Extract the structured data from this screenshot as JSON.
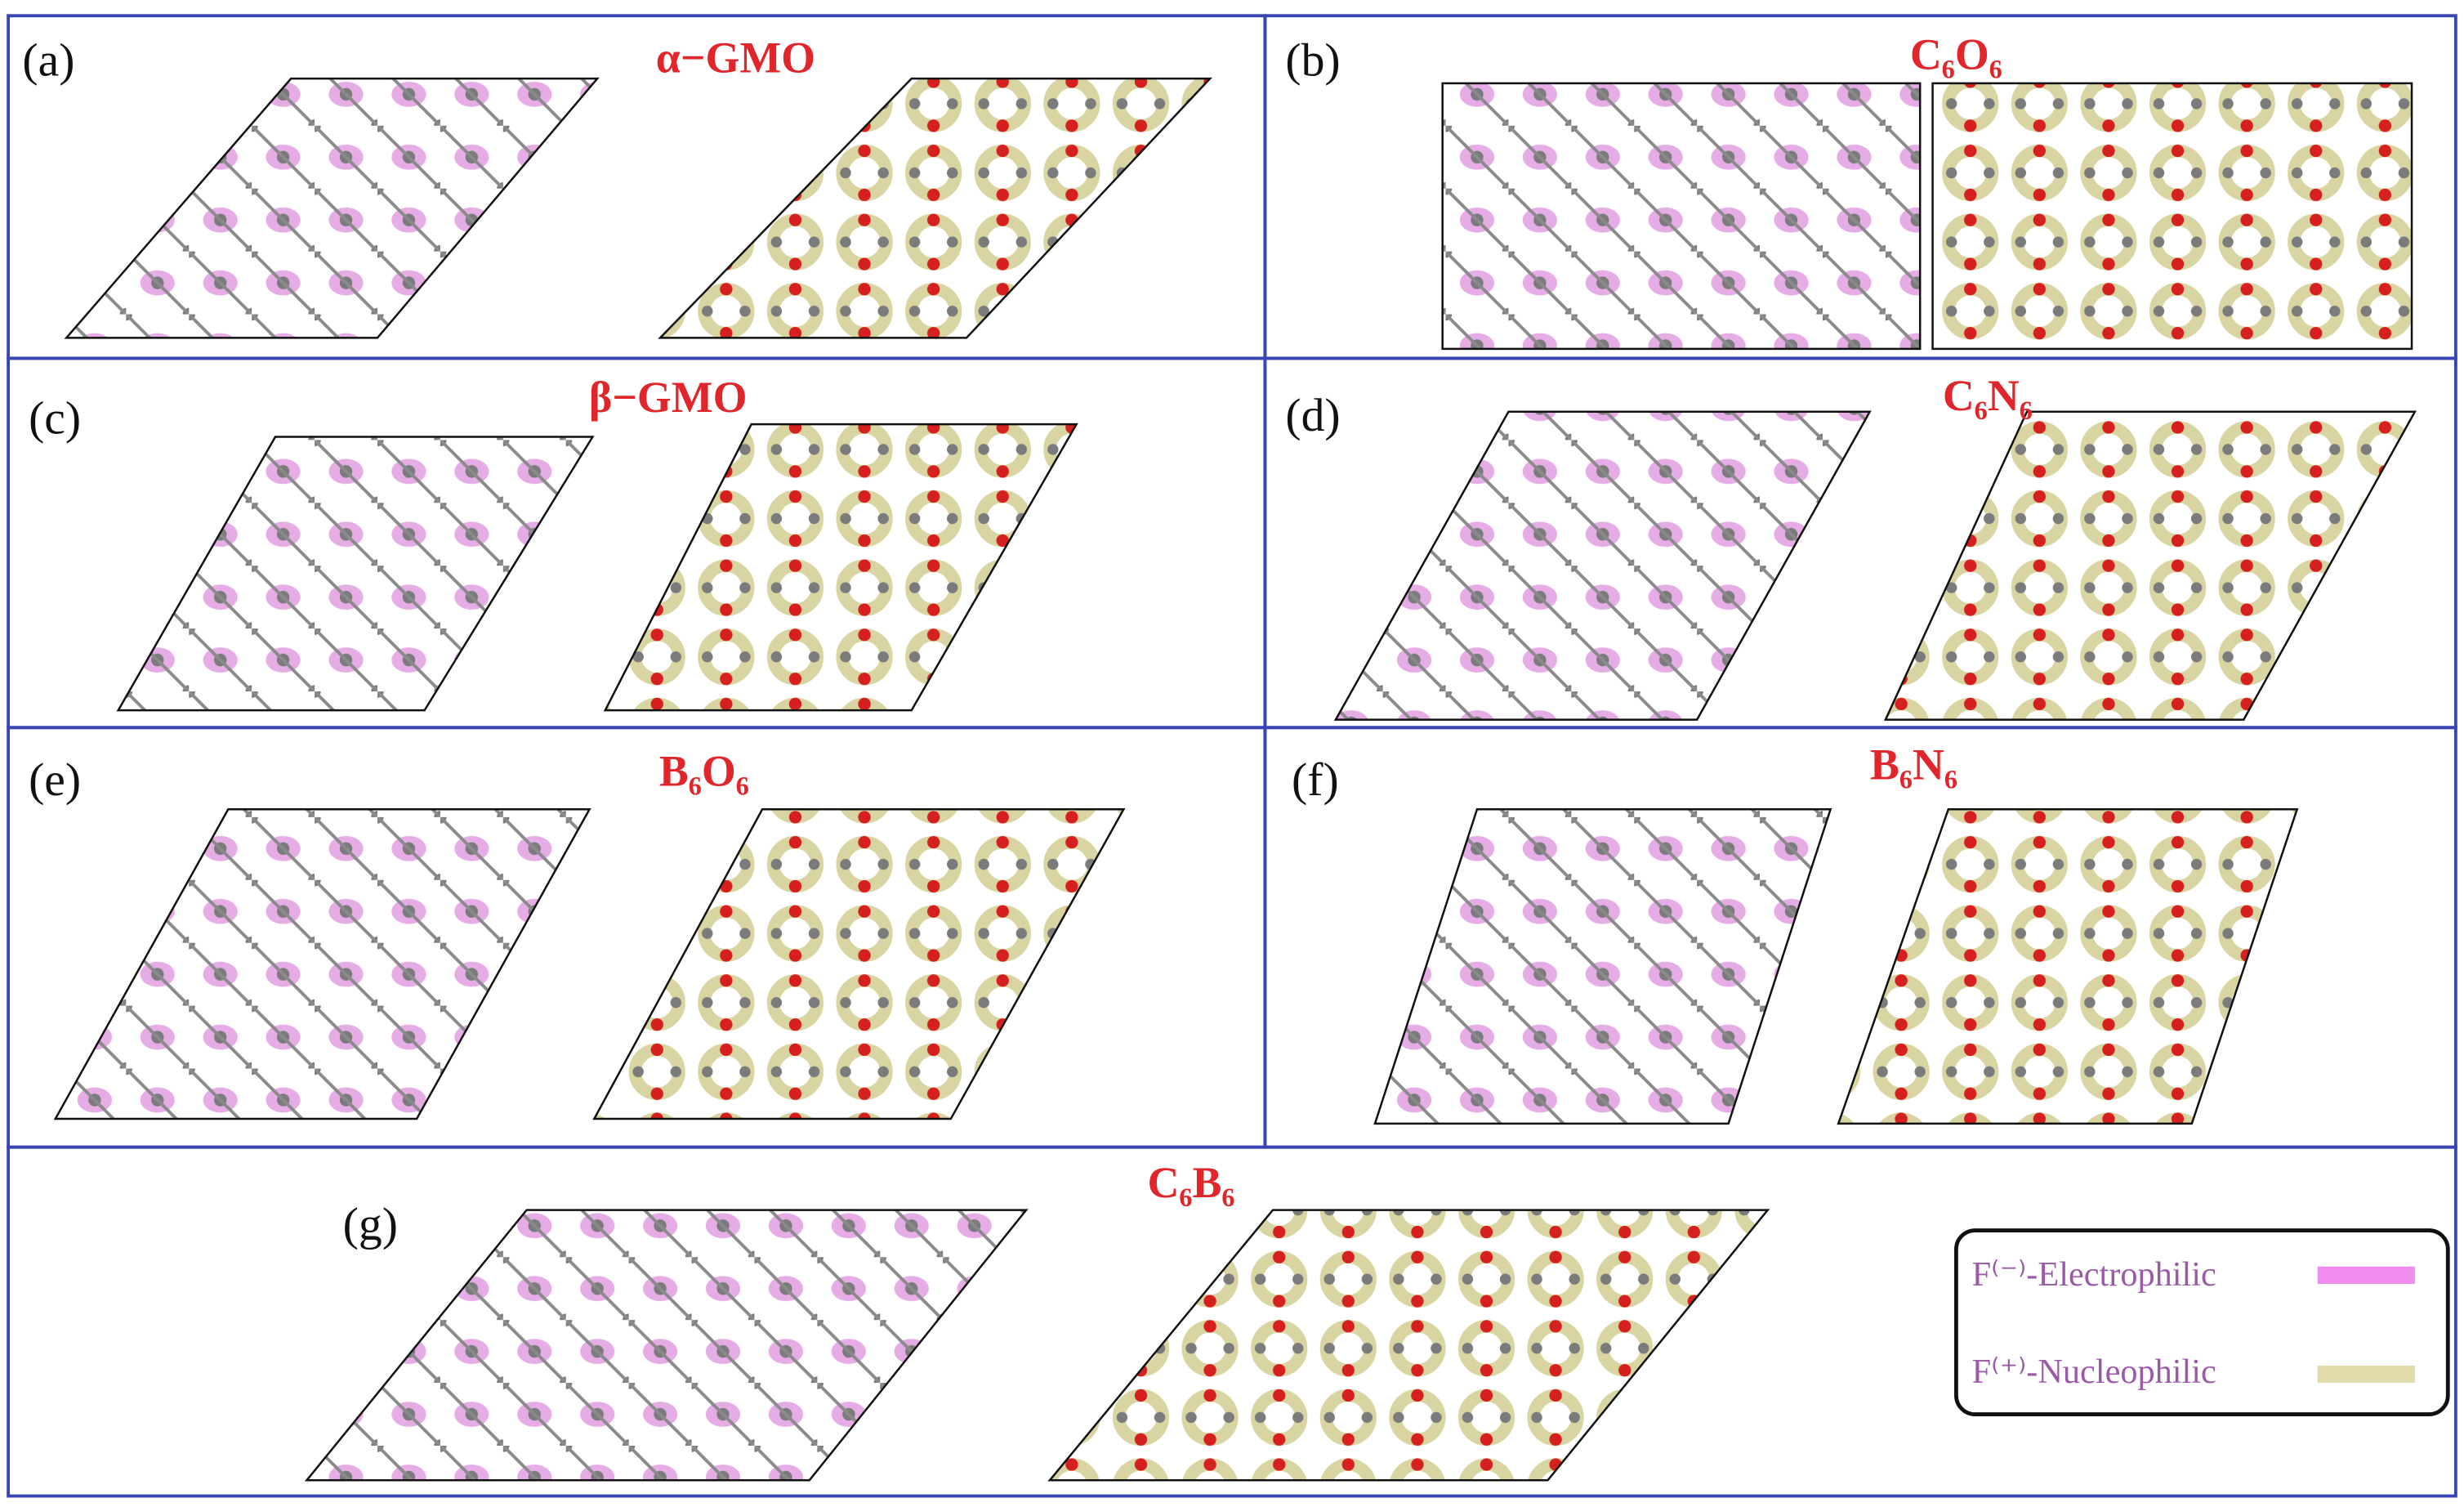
{
  "panels": [
    {
      "label": "(a)",
      "title": "α−GMO"
    },
    {
      "label": "(b)",
      "title": "C₆O₆"
    },
    {
      "label": "(c)",
      "title": "β−GMO"
    },
    {
      "label": "(d)",
      "title": "C₆N₆"
    },
    {
      "label": "(e)",
      "title": "B₆O₆"
    },
    {
      "label": "(f)",
      "title": "B₆N₆"
    },
    {
      "label": "(g)",
      "title": "C₆B₆"
    }
  ],
  "legend": {
    "items": [
      "F⁽⁻⁾-Electrophilic",
      "F⁽⁺⁾-Nucleophilic"
    ]
  }
}
